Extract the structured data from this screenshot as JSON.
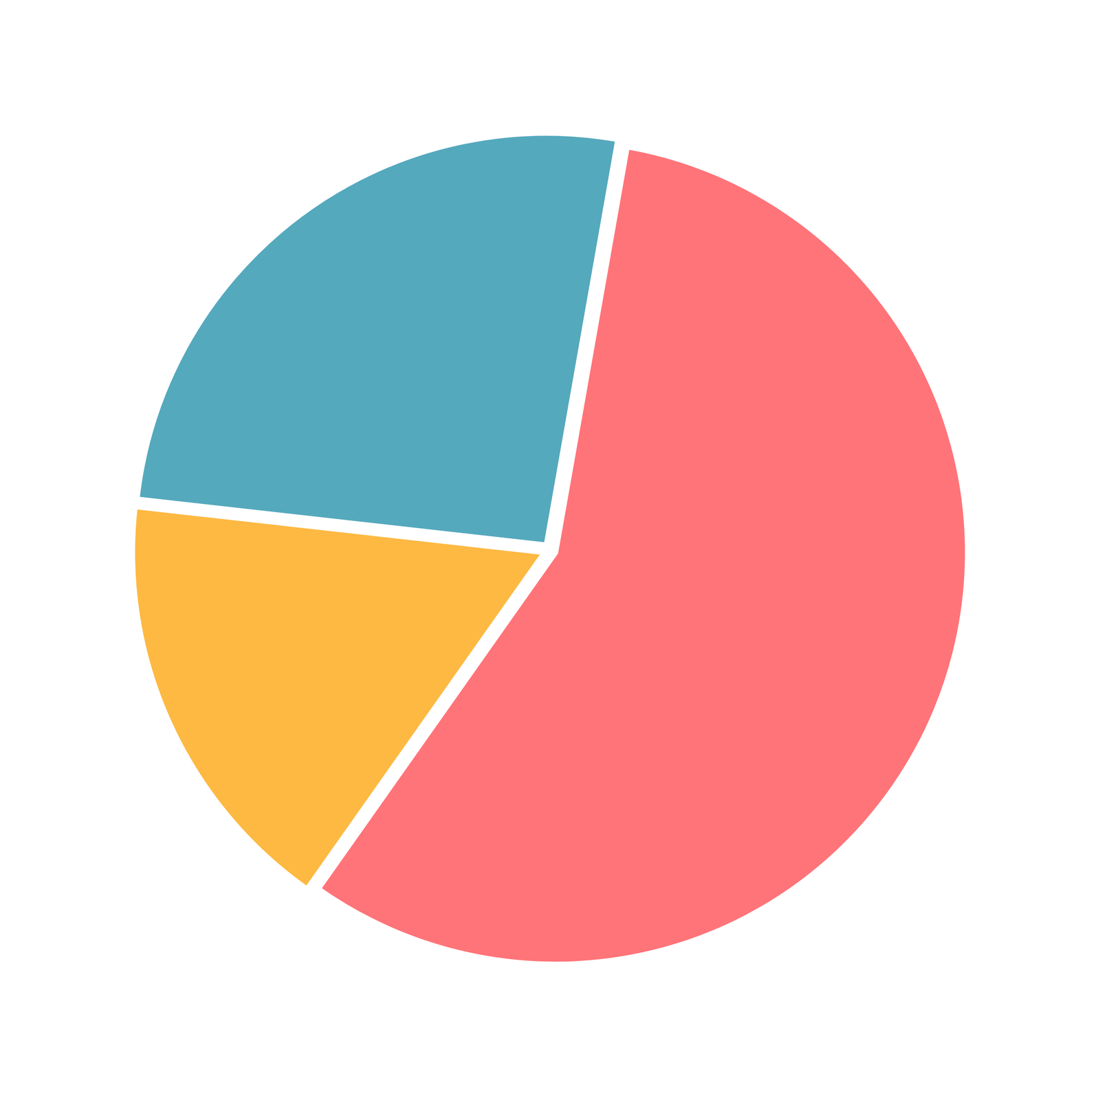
{
  "chart_data": {
    "type": "pie",
    "values": [
      57,
      17,
      26
    ],
    "colors": [
      "#ff7479",
      "#fdb942",
      "#55a9bd"
    ]
  }
}
